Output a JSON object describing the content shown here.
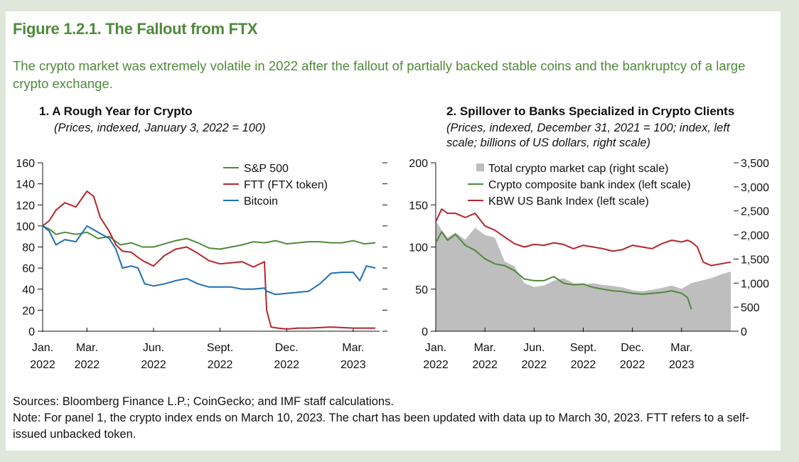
{
  "figure": {
    "title": "Figure 1.2.1. The Fallout from FTX",
    "subtitle": "The crypto market was extremely volatile in 2022 after the fallout of partially backed stable coins and the bankruptcy of a large crypto exchange."
  },
  "footer": {
    "sources": "Sources: Bloomberg Finance L.P.; CoinGecko; and IMF staff calculations.",
    "note": "Note: For panel 1, the crypto index ends on March 10, 2023. The chart has been updated with data up to March 30, 2023. FTT refers to a self-issued unbacked token."
  },
  "chart_data": [
    {
      "type": "line",
      "title": "1. A Rough Year for Crypto",
      "subtitle": "(Prices, indexed, January 3, 2022 = 100)",
      "ylim": [
        0,
        160
      ],
      "yticks": [
        0,
        20,
        40,
        60,
        80,
        100,
        120,
        140,
        160
      ],
      "ytick_labels": [
        "0",
        "20",
        "40",
        "60",
        "80",
        "100",
        "120",
        "140",
        "160"
      ],
      "xlim": [
        0,
        15
      ],
      "x_ticks": [
        {
          "x": 0,
          "line1": "Jan.",
          "line2": "2022"
        },
        {
          "x": 2,
          "line1": "Mar.",
          "line2": "2022"
        },
        {
          "x": 5,
          "line1": "Jun.",
          "line2": "2022"
        },
        {
          "x": 8,
          "line1": "Sept.",
          "line2": "2022"
        },
        {
          "x": 11,
          "line1": "Dec.",
          "line2": "2022"
        },
        {
          "x": 14,
          "line1": "Mar.",
          "line2": "2023"
        }
      ],
      "legend_position": "top-right",
      "grid": false,
      "series": [
        {
          "name": "S&P 500",
          "color": "#4f8a3a",
          "x": [
            0,
            0.3,
            0.6,
            1,
            1.5,
            2,
            2.5,
            3,
            3.5,
            4,
            4.5,
            5,
            5.5,
            6,
            6.5,
            7,
            7.5,
            8,
            8.5,
            9,
            9.5,
            10,
            10.5,
            11,
            11.5,
            12,
            12.5,
            13,
            13.5,
            14,
            14.5,
            15
          ],
          "values": [
            100,
            97,
            92,
            94,
            92,
            94,
            88,
            90,
            82,
            84,
            80,
            80,
            83,
            86,
            88,
            84,
            79,
            78,
            80,
            82,
            85,
            84,
            86,
            83,
            84,
            85,
            85,
            84,
            84,
            86,
            83,
            84
          ]
        },
        {
          "name": "FTT (FTX token)",
          "color": "#b5262e",
          "x": [
            0,
            0.3,
            0.6,
            1,
            1.5,
            2,
            2.3,
            2.6,
            3,
            3.3,
            3.6,
            4,
            4.3,
            4.6,
            5,
            5.5,
            6,
            6.5,
            7,
            7.5,
            8,
            8.5,
            9,
            9.5,
            10,
            10.1,
            10.3,
            10.6,
            11,
            11.5,
            12,
            13,
            14,
            15
          ],
          "values": [
            100,
            105,
            115,
            122,
            118,
            133,
            128,
            108,
            95,
            82,
            76,
            75,
            70,
            66,
            62,
            72,
            78,
            80,
            74,
            67,
            64,
            65,
            66,
            61,
            66,
            20,
            4,
            3,
            2,
            3,
            3,
            4,
            3,
            3
          ]
        },
        {
          "name": "Bitcoin",
          "color": "#1d6fb0",
          "x": [
            0,
            0.3,
            0.6,
            1,
            1.5,
            2,
            2.5,
            3,
            3.3,
            3.6,
            4,
            4.3,
            4.6,
            5,
            5.5,
            6,
            6.5,
            7,
            7.5,
            8,
            8.5,
            9,
            9.5,
            10,
            10.1,
            10.5,
            11,
            11.5,
            12,
            12.5,
            13,
            13.5,
            14,
            14.3,
            14.6,
            15
          ],
          "values": [
            100,
            95,
            82,
            87,
            85,
            100,
            94,
            88,
            78,
            60,
            62,
            60,
            45,
            43,
            45,
            48,
            50,
            45,
            42,
            42,
            42,
            40,
            40,
            41,
            38,
            35,
            36,
            37,
            38,
            45,
            55,
            56,
            56,
            48,
            62,
            60
          ]
        }
      ]
    },
    {
      "type": "area",
      "title": "2. Spillover to Banks Specialized in Crypto Clients",
      "subtitle": "(Prices, indexed, December 31, 2021 = 100; index, left scale; billions of US dollars, right scale)",
      "ylim": [
        0,
        200
      ],
      "yticks": [
        0,
        50,
        100,
        150,
        200
      ],
      "ytick_labels": [
        "0",
        "50",
        "100",
        "150",
        "200"
      ],
      "y2lim": [
        0,
        3500
      ],
      "y2ticks": [
        0,
        500,
        1000,
        1500,
        2000,
        2500,
        3000,
        3500
      ],
      "y2tick_labels": [
        "0",
        "500",
        "1,000",
        "1,500",
        "2,000",
        "2,500",
        "3,000",
        "3,500"
      ],
      "xlim": [
        0,
        15
      ],
      "x_ticks": [
        {
          "x": 0,
          "line1": "Jan.",
          "line2": "2022"
        },
        {
          "x": 2.5,
          "line1": "Mar.",
          "line2": "2022"
        },
        {
          "x": 5,
          "line1": "Jun.",
          "line2": "2022"
        },
        {
          "x": 7.5,
          "line1": "Sept.",
          "line2": "2022"
        },
        {
          "x": 10,
          "line1": "Dec.",
          "line2": "2022"
        },
        {
          "x": 12.5,
          "line1": "Mar.",
          "line2": "2023"
        }
      ],
      "legend_position": "top-right",
      "grid": false,
      "series": [
        {
          "name": "Total crypto market cap (right scale)",
          "color": "#bebebe",
          "axis": "right",
          "x": [
            0,
            0.3,
            0.6,
            1,
            1.5,
            2,
            2.5,
            3,
            3.5,
            4,
            4.5,
            5,
            5.5,
            6,
            6.5,
            7,
            7.5,
            8,
            8.5,
            9,
            9.5,
            10,
            10.5,
            11,
            11.5,
            12,
            12.5,
            13,
            13.5,
            14,
            14.5,
            15
          ],
          "values": [
            2300,
            2100,
            1950,
            2050,
            1900,
            2150,
            2000,
            1950,
            1450,
            1350,
            1000,
            920,
            950,
            1050,
            1100,
            1000,
            960,
            1000,
            960,
            940,
            910,
            850,
            830,
            860,
            900,
            950,
            880,
            1000,
            1050,
            1100,
            1180,
            1240
          ]
        },
        {
          "name": "Crypto composite bank index (left scale)",
          "color": "#4f8a3a",
          "axis": "left",
          "x": [
            0,
            0.3,
            0.6,
            1,
            1.5,
            2,
            2.5,
            3,
            3.5,
            4,
            4.5,
            5,
            5.5,
            6,
            6.5,
            7,
            7.5,
            8,
            8.5,
            9,
            9.5,
            10,
            10.5,
            11,
            11.5,
            12,
            12.5,
            12.8,
            13
          ],
          "values": [
            105,
            118,
            108,
            115,
            102,
            96,
            86,
            80,
            78,
            72,
            62,
            60,
            60,
            65,
            57,
            55,
            56,
            52,
            50,
            48,
            47,
            45,
            44,
            45,
            46,
            48,
            45,
            40,
            26
          ]
        },
        {
          "name": "KBW US Bank Index (left scale)",
          "color": "#b5262e",
          "axis": "left",
          "x": [
            0,
            0.3,
            0.6,
            1,
            1.5,
            2,
            2.5,
            3,
            3.5,
            4,
            4.5,
            5,
            5.5,
            6,
            6.5,
            7,
            7.5,
            8,
            8.5,
            9,
            9.5,
            10,
            10.5,
            11,
            11.5,
            12,
            12.5,
            12.8,
            13,
            13.3,
            13.6,
            14,
            14.5,
            15
          ],
          "values": [
            130,
            145,
            140,
            140,
            135,
            140,
            125,
            120,
            112,
            104,
            100,
            103,
            102,
            105,
            103,
            98,
            102,
            100,
            98,
            95,
            97,
            102,
            100,
            98,
            104,
            108,
            106,
            108,
            106,
            100,
            82,
            78,
            80,
            82
          ]
        }
      ]
    }
  ]
}
